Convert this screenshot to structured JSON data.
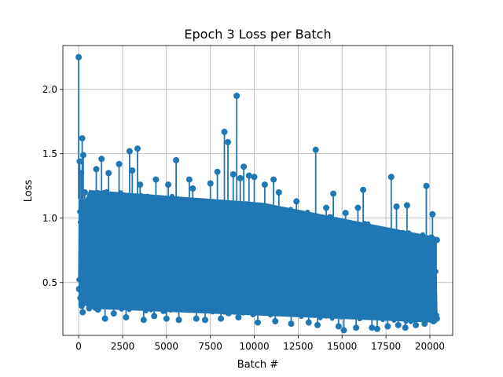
{
  "chart_data": {
    "type": "line",
    "title": "Epoch 3 Loss per Batch",
    "xlabel": "Batch #",
    "ylabel": "Loss",
    "xlim": [
      -900,
      21300
    ],
    "ylim": [
      0.09,
      2.34
    ],
    "xticks": [
      0,
      2500,
      5000,
      7500,
      10000,
      12500,
      15000,
      17500,
      20000
    ],
    "xtick_labels": [
      "0",
      "2500",
      "5000",
      "7500",
      "10000",
      "12500",
      "15000",
      "17500",
      "20000"
    ],
    "yticks": [
      0.5,
      1.0,
      1.5,
      2.0
    ],
    "ytick_labels": [
      "0.5",
      "1.0",
      "1.5",
      "2.0"
    ],
    "grid": true,
    "color": "#1f77b4",
    "marker": "circle",
    "series": [
      {
        "points": [
          [
            0,
            2.25
          ],
          [
            20,
            0.45
          ],
          [
            60,
            1.44
          ],
          [
            100,
            0.38
          ],
          [
            140,
            1.35
          ],
          [
            170,
            0.32
          ],
          [
            200,
            1.62
          ],
          [
            230,
            0.27
          ],
          [
            260,
            1.49
          ],
          [
            300,
            0.5
          ],
          [
            350,
            1.2
          ],
          [
            400,
            0.55
          ],
          [
            1000,
            1.38
          ],
          [
            1300,
            1.46
          ],
          [
            1700,
            1.35
          ],
          [
            2300,
            1.42
          ],
          [
            2900,
            1.52
          ],
          [
            3050,
            1.37
          ],
          [
            3350,
            1.54
          ],
          [
            3500,
            1.26
          ],
          [
            4400,
            1.3
          ],
          [
            5100,
            1.26
          ],
          [
            5550,
            1.45
          ],
          [
            6300,
            1.3
          ],
          [
            6500,
            1.23
          ],
          [
            7500,
            1.27
          ],
          [
            7900,
            1.36
          ],
          [
            8300,
            1.67
          ],
          [
            8500,
            1.59
          ],
          [
            8800,
            1.34
          ],
          [
            9000,
            1.95
          ],
          [
            9200,
            1.31
          ],
          [
            9400,
            1.4
          ],
          [
            9700,
            1.33
          ],
          [
            10000,
            1.32
          ],
          [
            10600,
            1.26
          ],
          [
            11100,
            1.3
          ],
          [
            11400,
            1.2
          ],
          [
            12400,
            1.13
          ],
          [
            13500,
            1.53
          ],
          [
            14100,
            1.08
          ],
          [
            14500,
            1.19
          ],
          [
            15200,
            1.04
          ],
          [
            15900,
            1.08
          ],
          [
            16200,
            1.22
          ],
          [
            17800,
            1.32
          ],
          [
            18100,
            1.09
          ],
          [
            18700,
            1.1
          ],
          [
            19800,
            1.25
          ],
          [
            20150,
            1.03
          ],
          [
            600,
            0.3
          ],
          [
            1100,
            0.29
          ],
          [
            1500,
            0.22
          ],
          [
            2000,
            0.26
          ],
          [
            2700,
            0.23
          ],
          [
            3700,
            0.21
          ],
          [
            4300,
            0.24
          ],
          [
            5000,
            0.22
          ],
          [
            5700,
            0.21
          ],
          [
            6700,
            0.22
          ],
          [
            7200,
            0.21
          ],
          [
            8100,
            0.22
          ],
          [
            9100,
            0.23
          ],
          [
            10200,
            0.19
          ],
          [
            11200,
            0.2
          ],
          [
            12100,
            0.18
          ],
          [
            13100,
            0.19
          ],
          [
            13600,
            0.17
          ],
          [
            14800,
            0.16
          ],
          [
            15100,
            0.13
          ],
          [
            15800,
            0.15
          ],
          [
            16700,
            0.15
          ],
          [
            17000,
            0.14
          ],
          [
            17600,
            0.16
          ],
          [
            18200,
            0.17
          ],
          [
            18600,
            0.15
          ],
          [
            19200,
            0.17
          ],
          [
            19700,
            0.18
          ],
          [
            20200,
            0.2
          ],
          [
            20400,
            0.22
          ],
          [
            20400,
            0.83
          ]
        ]
      }
    ]
  }
}
